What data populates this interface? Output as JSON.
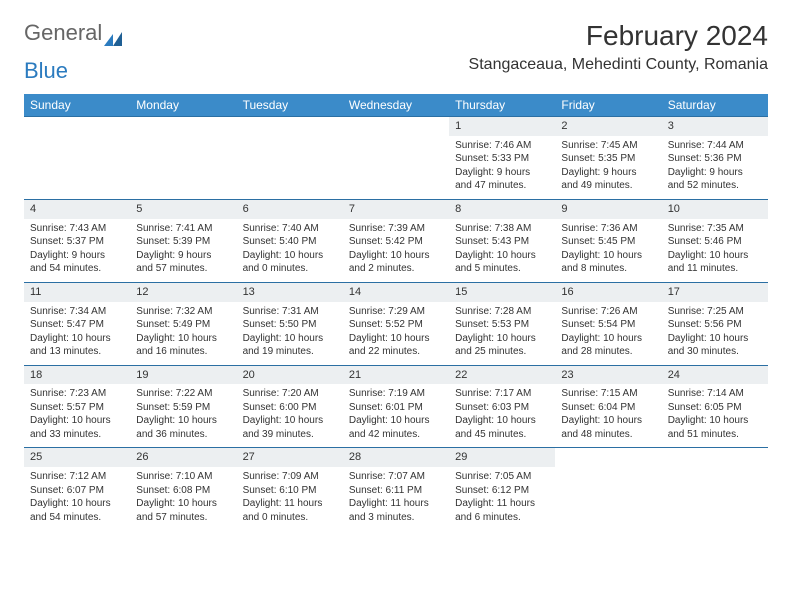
{
  "logo": {
    "text1": "General",
    "text2": "Blue"
  },
  "title": "February 2024",
  "location": "Stangaceaua, Mehedinti County, Romania",
  "colors": {
    "header_bg": "#3b8bc9",
    "row_border": "#2b6fa3",
    "daynum_bg": "#eceff1"
  },
  "weekdays": [
    "Sunday",
    "Monday",
    "Tuesday",
    "Wednesday",
    "Thursday",
    "Friday",
    "Saturday"
  ],
  "weeks": [
    [
      null,
      null,
      null,
      null,
      {
        "n": "1",
        "sr": "Sunrise: 7:46 AM",
        "ss": "Sunset: 5:33 PM",
        "dl": "Daylight: 9 hours and 47 minutes."
      },
      {
        "n": "2",
        "sr": "Sunrise: 7:45 AM",
        "ss": "Sunset: 5:35 PM",
        "dl": "Daylight: 9 hours and 49 minutes."
      },
      {
        "n": "3",
        "sr": "Sunrise: 7:44 AM",
        "ss": "Sunset: 5:36 PM",
        "dl": "Daylight: 9 hours and 52 minutes."
      }
    ],
    [
      {
        "n": "4",
        "sr": "Sunrise: 7:43 AM",
        "ss": "Sunset: 5:37 PM",
        "dl": "Daylight: 9 hours and 54 minutes."
      },
      {
        "n": "5",
        "sr": "Sunrise: 7:41 AM",
        "ss": "Sunset: 5:39 PM",
        "dl": "Daylight: 9 hours and 57 minutes."
      },
      {
        "n": "6",
        "sr": "Sunrise: 7:40 AM",
        "ss": "Sunset: 5:40 PM",
        "dl": "Daylight: 10 hours and 0 minutes."
      },
      {
        "n": "7",
        "sr": "Sunrise: 7:39 AM",
        "ss": "Sunset: 5:42 PM",
        "dl": "Daylight: 10 hours and 2 minutes."
      },
      {
        "n": "8",
        "sr": "Sunrise: 7:38 AM",
        "ss": "Sunset: 5:43 PM",
        "dl": "Daylight: 10 hours and 5 minutes."
      },
      {
        "n": "9",
        "sr": "Sunrise: 7:36 AM",
        "ss": "Sunset: 5:45 PM",
        "dl": "Daylight: 10 hours and 8 minutes."
      },
      {
        "n": "10",
        "sr": "Sunrise: 7:35 AM",
        "ss": "Sunset: 5:46 PM",
        "dl": "Daylight: 10 hours and 11 minutes."
      }
    ],
    [
      {
        "n": "11",
        "sr": "Sunrise: 7:34 AM",
        "ss": "Sunset: 5:47 PM",
        "dl": "Daylight: 10 hours and 13 minutes."
      },
      {
        "n": "12",
        "sr": "Sunrise: 7:32 AM",
        "ss": "Sunset: 5:49 PM",
        "dl": "Daylight: 10 hours and 16 minutes."
      },
      {
        "n": "13",
        "sr": "Sunrise: 7:31 AM",
        "ss": "Sunset: 5:50 PM",
        "dl": "Daylight: 10 hours and 19 minutes."
      },
      {
        "n": "14",
        "sr": "Sunrise: 7:29 AM",
        "ss": "Sunset: 5:52 PM",
        "dl": "Daylight: 10 hours and 22 minutes."
      },
      {
        "n": "15",
        "sr": "Sunrise: 7:28 AM",
        "ss": "Sunset: 5:53 PM",
        "dl": "Daylight: 10 hours and 25 minutes."
      },
      {
        "n": "16",
        "sr": "Sunrise: 7:26 AM",
        "ss": "Sunset: 5:54 PM",
        "dl": "Daylight: 10 hours and 28 minutes."
      },
      {
        "n": "17",
        "sr": "Sunrise: 7:25 AM",
        "ss": "Sunset: 5:56 PM",
        "dl": "Daylight: 10 hours and 30 minutes."
      }
    ],
    [
      {
        "n": "18",
        "sr": "Sunrise: 7:23 AM",
        "ss": "Sunset: 5:57 PM",
        "dl": "Daylight: 10 hours and 33 minutes."
      },
      {
        "n": "19",
        "sr": "Sunrise: 7:22 AM",
        "ss": "Sunset: 5:59 PM",
        "dl": "Daylight: 10 hours and 36 minutes."
      },
      {
        "n": "20",
        "sr": "Sunrise: 7:20 AM",
        "ss": "Sunset: 6:00 PM",
        "dl": "Daylight: 10 hours and 39 minutes."
      },
      {
        "n": "21",
        "sr": "Sunrise: 7:19 AM",
        "ss": "Sunset: 6:01 PM",
        "dl": "Daylight: 10 hours and 42 minutes."
      },
      {
        "n": "22",
        "sr": "Sunrise: 7:17 AM",
        "ss": "Sunset: 6:03 PM",
        "dl": "Daylight: 10 hours and 45 minutes."
      },
      {
        "n": "23",
        "sr": "Sunrise: 7:15 AM",
        "ss": "Sunset: 6:04 PM",
        "dl": "Daylight: 10 hours and 48 minutes."
      },
      {
        "n": "24",
        "sr": "Sunrise: 7:14 AM",
        "ss": "Sunset: 6:05 PM",
        "dl": "Daylight: 10 hours and 51 minutes."
      }
    ],
    [
      {
        "n": "25",
        "sr": "Sunrise: 7:12 AM",
        "ss": "Sunset: 6:07 PM",
        "dl": "Daylight: 10 hours and 54 minutes."
      },
      {
        "n": "26",
        "sr": "Sunrise: 7:10 AM",
        "ss": "Sunset: 6:08 PM",
        "dl": "Daylight: 10 hours and 57 minutes."
      },
      {
        "n": "27",
        "sr": "Sunrise: 7:09 AM",
        "ss": "Sunset: 6:10 PM",
        "dl": "Daylight: 11 hours and 0 minutes."
      },
      {
        "n": "28",
        "sr": "Sunrise: 7:07 AM",
        "ss": "Sunset: 6:11 PM",
        "dl": "Daylight: 11 hours and 3 minutes."
      },
      {
        "n": "29",
        "sr": "Sunrise: 7:05 AM",
        "ss": "Sunset: 6:12 PM",
        "dl": "Daylight: 11 hours and 6 minutes."
      },
      null,
      null
    ]
  ]
}
